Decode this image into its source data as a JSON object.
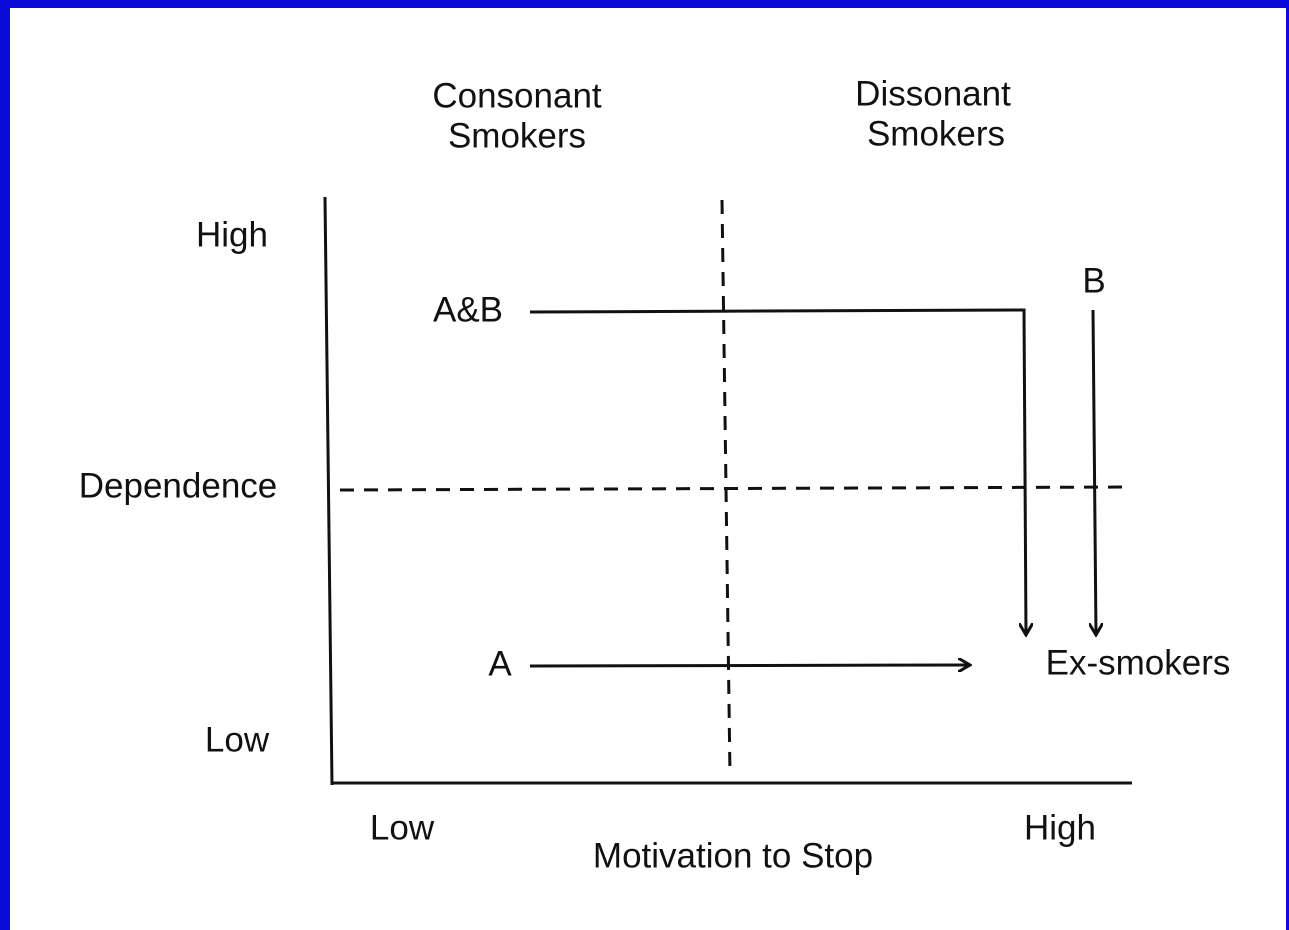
{
  "header": {
    "consonant": [
      "Consonant",
      "Smokers"
    ],
    "dissonant": [
      "Dissonant",
      "Smokers"
    ]
  },
  "y_axis": {
    "label": "Dependence",
    "high": "High",
    "low": "Low"
  },
  "x_axis": {
    "label": "Motivation to Stop",
    "low": "Low",
    "high": "High"
  },
  "paths": {
    "ab": "A&B",
    "b": "B",
    "a": "A",
    "end": "Ex-smokers"
  }
}
